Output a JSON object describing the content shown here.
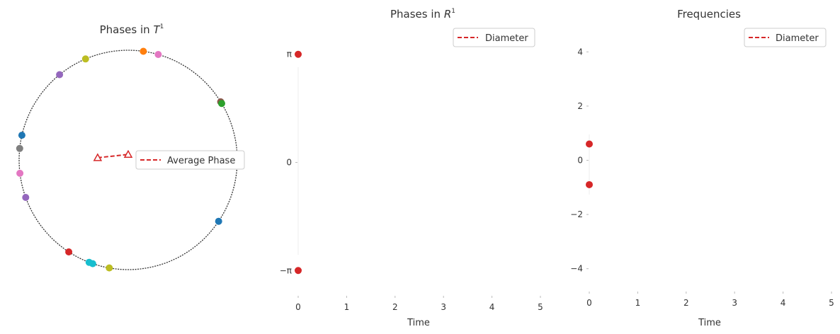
{
  "chart_data": [
    {
      "type": "scatter",
      "title": "Phases in",
      "title_math": "T",
      "title_sup": "1",
      "legend": {
        "label": "Average Phase",
        "color": "#d62728",
        "placement": "center-right"
      },
      "grid": false,
      "average_phase": {
        "from": [
          -0.28,
          0.02
        ],
        "to": [
          0.0,
          0.05
        ]
      },
      "points": [
        {
          "angle_deg": 82,
          "color": "#ff7f0e"
        },
        {
          "angle_deg": 74,
          "color": "#e377c2"
        },
        {
          "angle_deg": 32,
          "color": "#8c564b"
        },
        {
          "angle_deg": 31,
          "color": "#2ca02c"
        },
        {
          "angle_deg": 113,
          "color": "#bcbd22"
        },
        {
          "angle_deg": 129,
          "color": "#9467bd"
        },
        {
          "angle_deg": 167,
          "color": "#1f77b4"
        },
        {
          "angle_deg": 174,
          "color": "#7f7f7f"
        },
        {
          "angle_deg": 187,
          "color": "#e377c2"
        },
        {
          "angle_deg": 200,
          "color": "#9467bd"
        },
        {
          "angle_deg": 237,
          "color": "#d62728"
        },
        {
          "angle_deg": 251,
          "color": "#17becf"
        },
        {
          "angle_deg": 249,
          "color": "#17becf"
        },
        {
          "angle_deg": 260,
          "color": "#bcbd22"
        },
        {
          "angle_deg": 326,
          "color": "#1f77b4"
        }
      ]
    },
    {
      "type": "scatter",
      "title": "Phases in",
      "title_math": "R",
      "title_sup": "1",
      "xlabel": "Time",
      "ylabel": "",
      "xlim": [
        0,
        5
      ],
      "ylim": [
        -4,
        4
      ],
      "xticks": [
        "0",
        "1",
        "2",
        "3",
        "4",
        "5"
      ],
      "yticks": [
        {
          "label": "π",
          "value": 3.1416
        },
        {
          "label": "0",
          "value": 0
        },
        {
          "label": "−π",
          "value": -3.1416
        }
      ],
      "legend": {
        "label": "Diameter",
        "color": "#d62728",
        "placement": "top-right"
      },
      "grid": false,
      "series": [
        {
          "x": [
            0,
            0
          ],
          "y": [
            3.1416,
            -3.1416
          ],
          "color": "#d62728"
        }
      ]
    },
    {
      "type": "scatter",
      "title": "Frequencies",
      "xlabel": "Time",
      "ylabel": "",
      "xlim": [
        0,
        5
      ],
      "ylim": [
        -5,
        5
      ],
      "xticks": [
        "0",
        "1",
        "2",
        "3",
        "4",
        "5"
      ],
      "yticks": [
        {
          "label": "4",
          "value": 4
        },
        {
          "label": "2",
          "value": 2
        },
        {
          "label": "0",
          "value": 0
        },
        {
          "label": "−2",
          "value": -2
        },
        {
          "label": "−4",
          "value": -4
        }
      ],
      "legend": {
        "label": "Diameter",
        "color": "#d62728",
        "placement": "top-right"
      },
      "grid": false,
      "series": [
        {
          "x": [
            0,
            0
          ],
          "y": [
            0.6,
            -0.9
          ],
          "color": "#d62728"
        }
      ]
    }
  ]
}
